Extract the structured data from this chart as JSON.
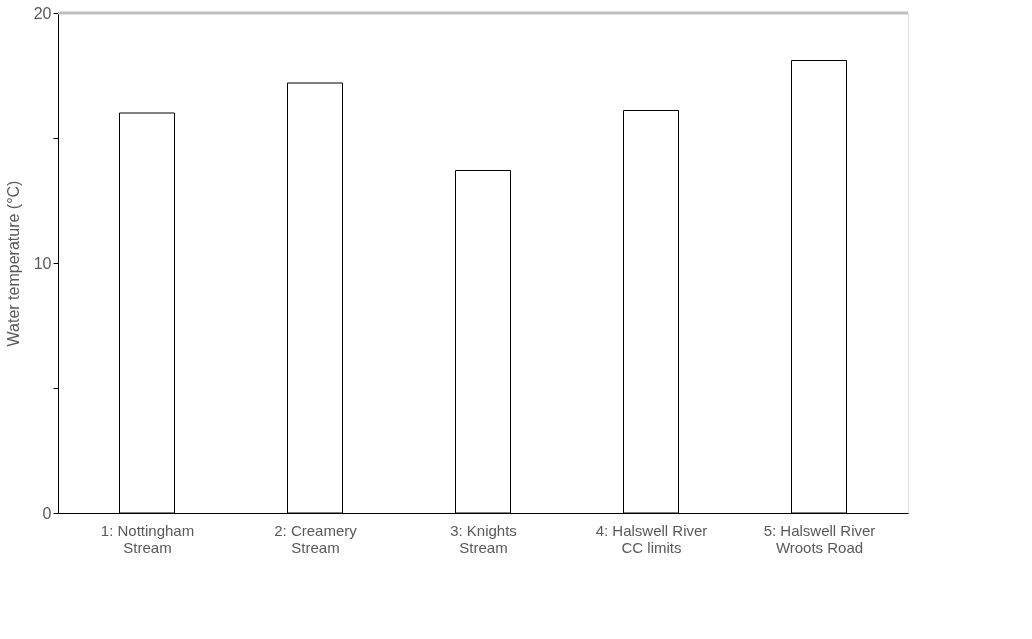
{
  "chart_data": {
    "type": "bar",
    "ylabel": "Water temperature (°C)",
    "categories": [
      "1: Nottingham\nStream",
      "2: Creamery\nStream",
      "3: Knights\nStream",
      "4: Halswell River\nCC limits",
      "5: Halswell River\nWroots Road"
    ],
    "values": [
      16.0,
      17.2,
      13.7,
      16.1,
      18.1
    ],
    "color": "#ffffff",
    "ylim": [
      0,
      20
    ],
    "yticks": [
      0,
      {
        "value": 5,
        "label": null
      },
      10,
      {
        "value": 15,
        "label": null
      },
      20
    ],
    "ref_lines": [
      {
        "axis": "y",
        "value": 20,
        "color": "#bfbfbf"
      }
    ],
    "grid": false
  }
}
